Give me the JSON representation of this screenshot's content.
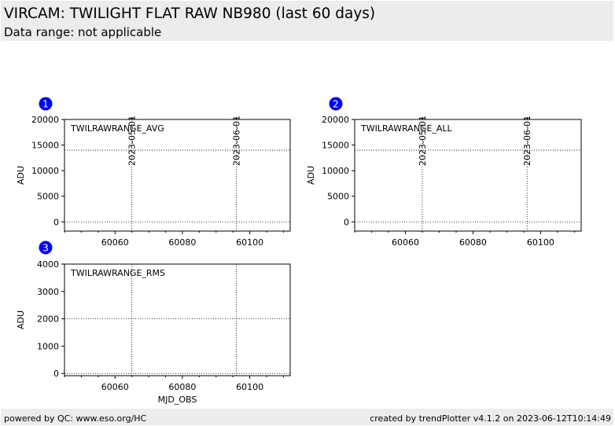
{
  "header": {
    "title": "VIRCAM: TWILIGHT FLAT RAW NB980 (last 60 days)",
    "subtitle": "Data range: not applicable"
  },
  "footer": {
    "left": "powered by QC: www.eso.org/HC",
    "right": "created by trendPlotter v4.1.2 on 2023-06-12T10:14:49"
  },
  "colors": {
    "badge": "#0000ff",
    "frame": "#000000",
    "guide": "#000000"
  },
  "chart_data": [
    {
      "type": "scatter",
      "panel": "1",
      "label": "TWILRAWRANGE_AVG",
      "ylabel": "ADU",
      "xlabel": "",
      "xlim": [
        60045,
        60112
      ],
      "ylim": [
        -1800,
        20000
      ],
      "yticks": [
        0,
        5000,
        10000,
        15000,
        20000
      ],
      "xticks": [
        60060,
        60080,
        60100
      ],
      "hlines": [
        14000,
        0
      ],
      "date_marks": [
        {
          "x": 60065,
          "label": "2023-05-01"
        },
        {
          "x": 60096,
          "label": "2023-06-01"
        }
      ],
      "series": []
    },
    {
      "type": "scatter",
      "panel": "2",
      "label": "TWILRAWRANGE_ALL",
      "ylabel": "ADU",
      "xlabel": "",
      "xlim": [
        60045,
        60112
      ],
      "ylim": [
        -1800,
        20000
      ],
      "yticks": [
        0,
        5000,
        10000,
        15000,
        20000
      ],
      "xticks": [
        60060,
        60080,
        60100
      ],
      "hlines": [
        14000,
        0
      ],
      "date_marks": [
        {
          "x": 60065,
          "label": "2023-05-01"
        },
        {
          "x": 60096,
          "label": "2023-06-01"
        }
      ],
      "series": []
    },
    {
      "type": "scatter",
      "panel": "3",
      "label": "TWILRAWRANGE_RMS",
      "ylabel": "ADU",
      "xlabel": "MJD_OBS",
      "xlim": [
        60045,
        60112
      ],
      "ylim": [
        -80,
        4000
      ],
      "yticks": [
        0,
        1000,
        2000,
        3000,
        4000
      ],
      "xticks": [
        60060,
        60080,
        60100
      ],
      "hlines": [
        2000,
        0
      ],
      "date_marks": [
        {
          "x": 60065,
          "label": ""
        },
        {
          "x": 60096,
          "label": ""
        }
      ],
      "series": []
    }
  ]
}
